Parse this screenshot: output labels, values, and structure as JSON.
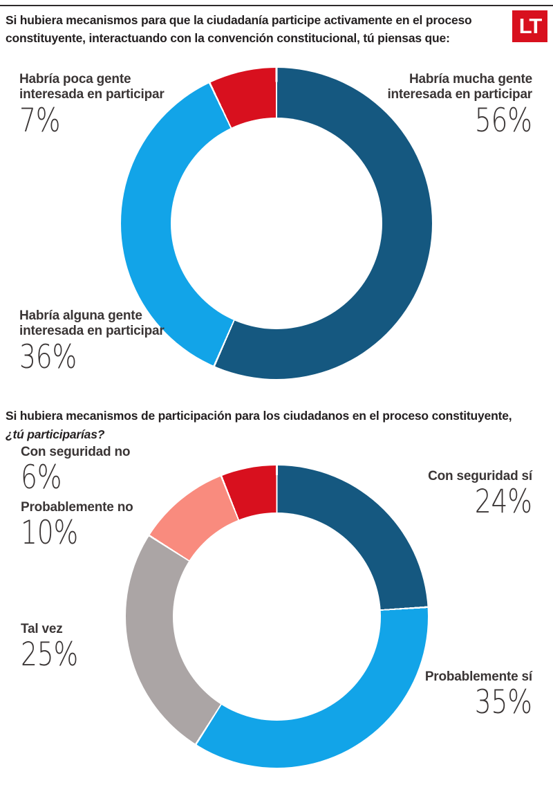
{
  "header": {
    "title_line1": "Si hubiera mecanismos para que la ciudadanía participe activamente en el proceso",
    "title_line2": "constituyente, interactuando con la convención constitucional, tú piensas que:",
    "logo_text": "LT",
    "logo_color": "#D8101E"
  },
  "section2": {
    "title_line1": "Si hubiera mecanismos de participación para los ciudadanos en el proceso constituyente,",
    "title_line2": "¿tú participarías?"
  },
  "chart_data": [
    {
      "type": "pie",
      "variant": "donut",
      "title": "Si hubiera mecanismos para que la ciudadanía participe activamente en el proceso constituyente, interactuando con la convención constitucional, tú piensas que:",
      "start_angle_deg": 0,
      "direction": "clockwise",
      "legend_position": "around",
      "segments": [
        {
          "label": "Habría mucha gente interesada en participar",
          "value_pct": 56,
          "color": "#155880"
        },
        {
          "label": "Habría alguna gente interesada en participar",
          "value_pct": 36,
          "color": "#12A4E8"
        },
        {
          "label": "Habría poca gente interesada en participar",
          "value_pct": 7,
          "color": "#D8101E"
        }
      ]
    },
    {
      "type": "pie",
      "variant": "donut",
      "title": "Si hubiera mecanismos de participación para los ciudadanos en el proceso constituyente, ¿tú participarías?",
      "start_angle_deg": 0,
      "direction": "clockwise",
      "legend_position": "around",
      "segments": [
        {
          "label": "Con seguridad sí",
          "value_pct": 24,
          "color": "#155880"
        },
        {
          "label": "Probablemente sí",
          "value_pct": 35,
          "color": "#12A4E8"
        },
        {
          "label": "Tal vez",
          "value_pct": 25,
          "color": "#ABA5A5"
        },
        {
          "label": "Probablemente no",
          "value_pct": 10,
          "color": "#F98B7E"
        },
        {
          "label": "Con seguridad no",
          "value_pct": 6,
          "color": "#D8101E"
        }
      ]
    }
  ],
  "chart1_labels": {
    "poca": {
      "line1": "Habría poca gente",
      "line2": "interesada en participar",
      "pct": "7%"
    },
    "mucha": {
      "line1": "Habría mucha gente",
      "line2": "interesada en participar",
      "pct": "56%"
    },
    "alguna": {
      "line1": "Habría alguna gente",
      "line2": "interesada en participar",
      "pct": "36%"
    }
  },
  "chart2_labels": {
    "con_seguridad_no": {
      "text": "Con seguridad no",
      "pct": "6%"
    },
    "probablemente_no": {
      "text": "Probablemente no",
      "pct": "10%"
    },
    "tal_vez": {
      "text": "Tal vez",
      "pct": "25%"
    },
    "con_seguridad_si": {
      "text": "Con seguridad sí",
      "pct": "24%"
    },
    "probablemente_si": {
      "text": "Probablemente sí",
      "pct": "35%"
    }
  }
}
